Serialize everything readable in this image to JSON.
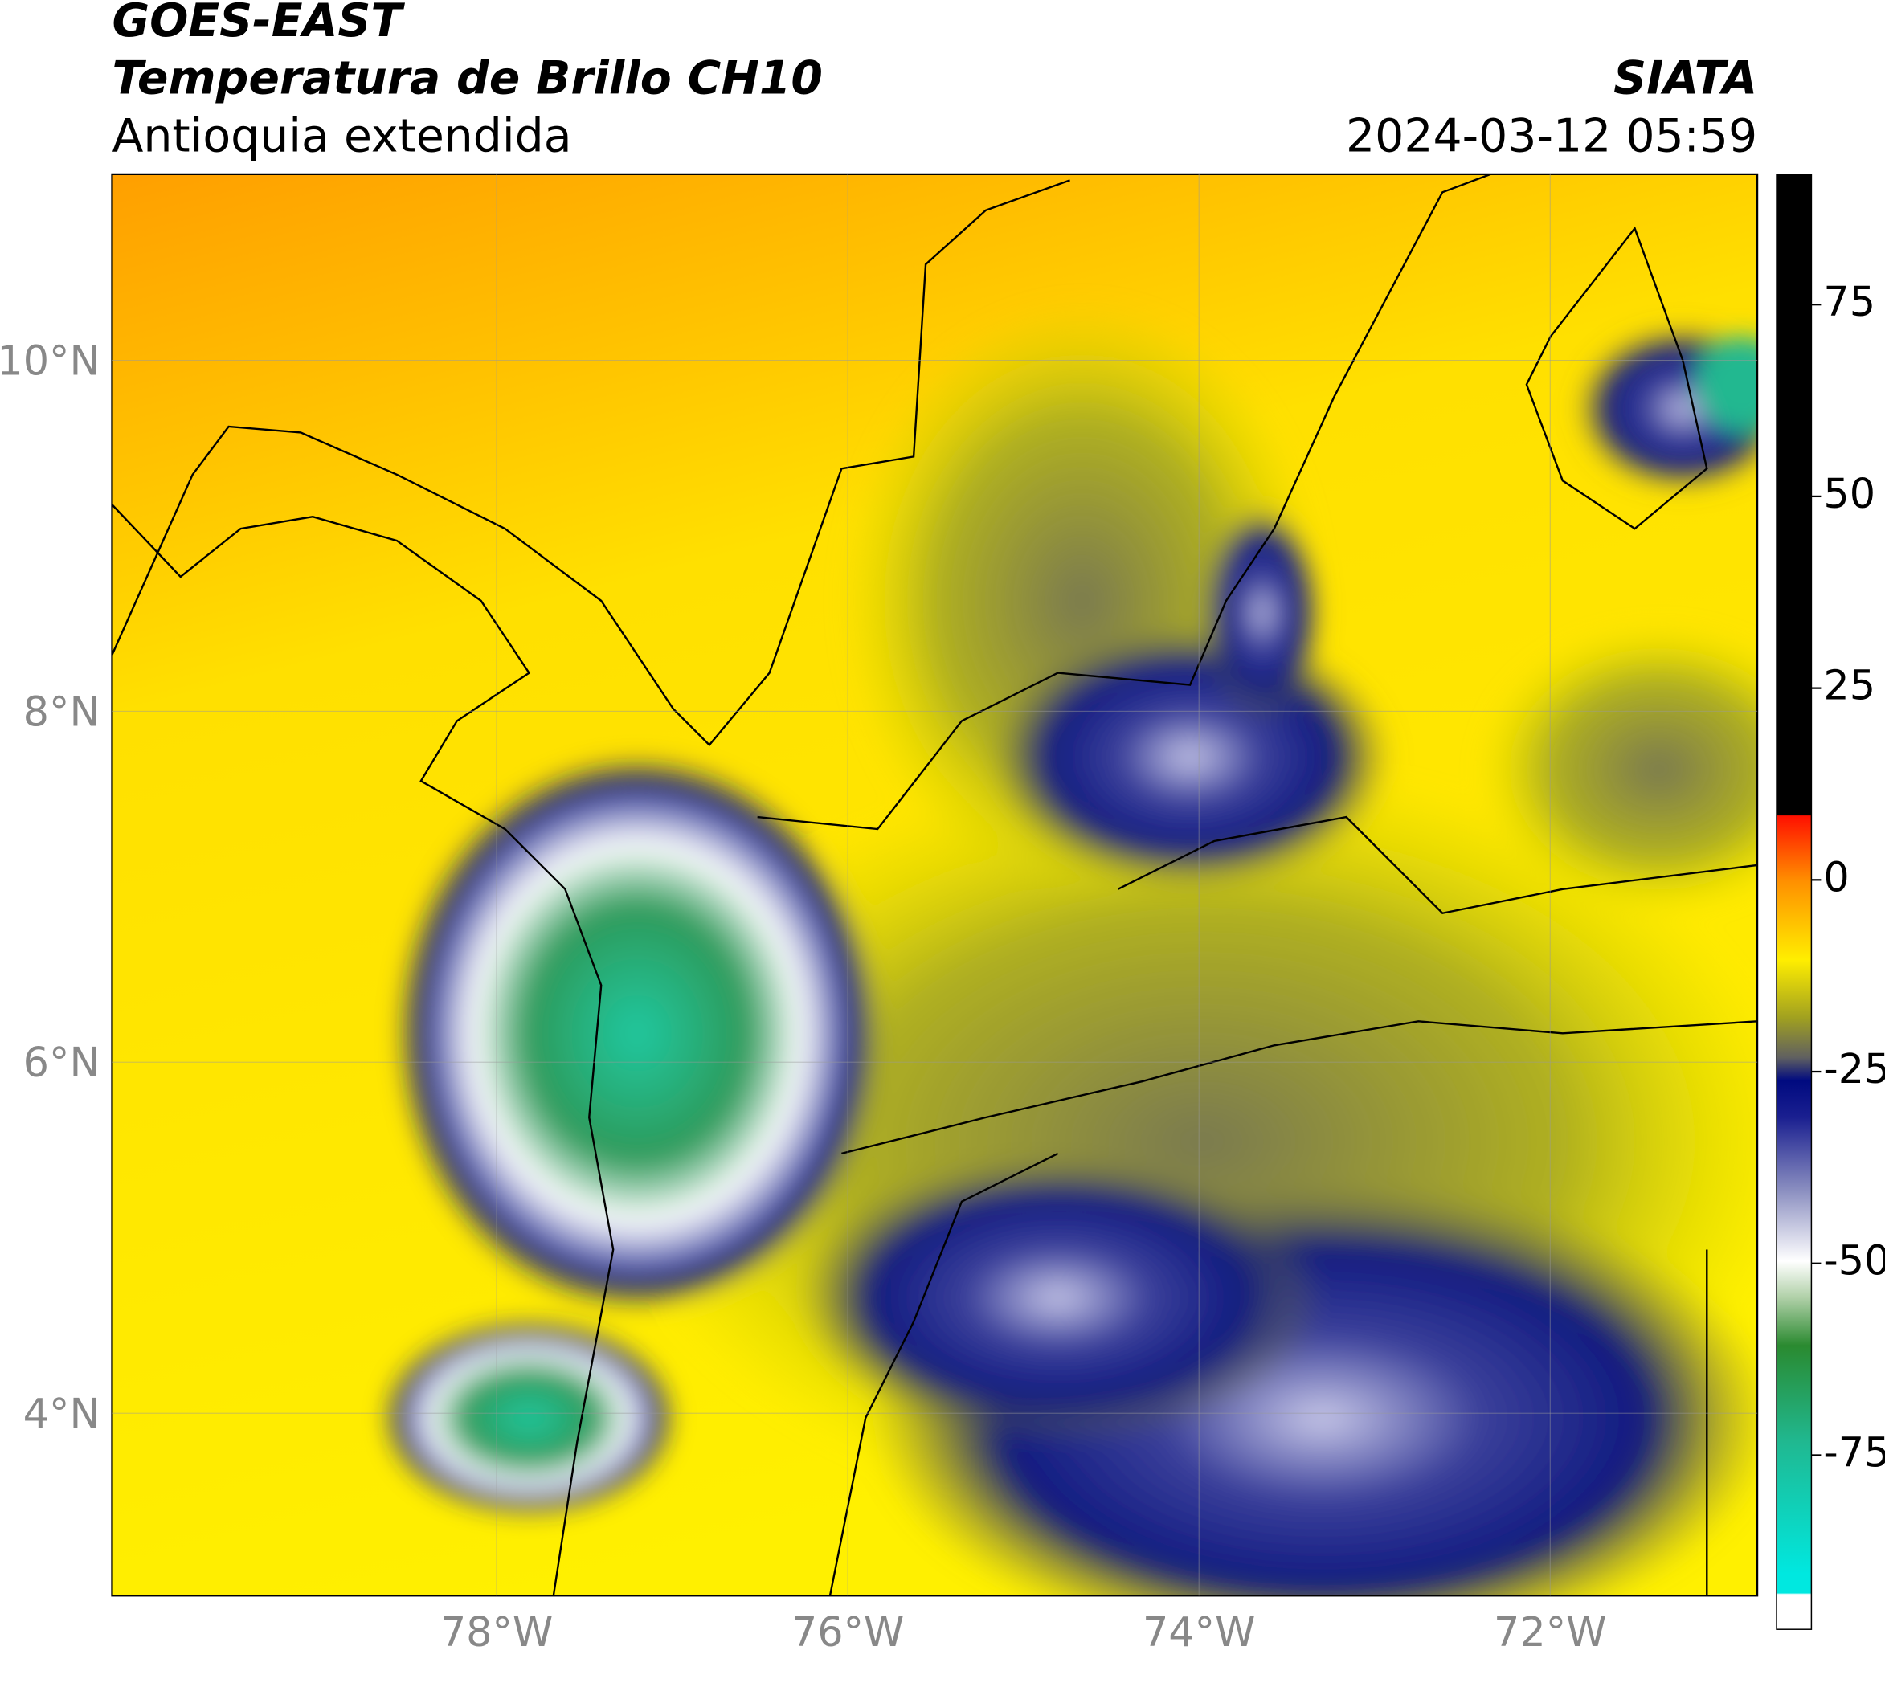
{
  "header": {
    "title": "GOES-EAST",
    "subtitle": "Temperatura de Brillo CH10",
    "region": "Antioquia extendida",
    "source": "SIATA",
    "timestamp": "2024-03-12 05:59"
  },
  "map": {
    "xlim": [
      -80.19,
      -70.82
    ],
    "ylim": [
      2.96,
      11.06
    ],
    "xticks": [
      {
        "value": -78,
        "label": "78°W"
      },
      {
        "value": -76,
        "label": "76°W"
      },
      {
        "value": -74,
        "label": "74°W"
      },
      {
        "value": -72,
        "label": "72°W"
      }
    ],
    "yticks": [
      {
        "value": 10,
        "label": "10°N"
      },
      {
        "value": 8,
        "label": "8°N"
      },
      {
        "value": 6,
        "label": "6°N"
      },
      {
        "value": 4,
        "label": "4°N"
      }
    ],
    "grid": true
  },
  "colorbar": {
    "lim": [
      -97.7,
      92
    ],
    "ticks": [
      75,
      50,
      25,
      0,
      -25,
      -50,
      -75
    ]
  }
}
